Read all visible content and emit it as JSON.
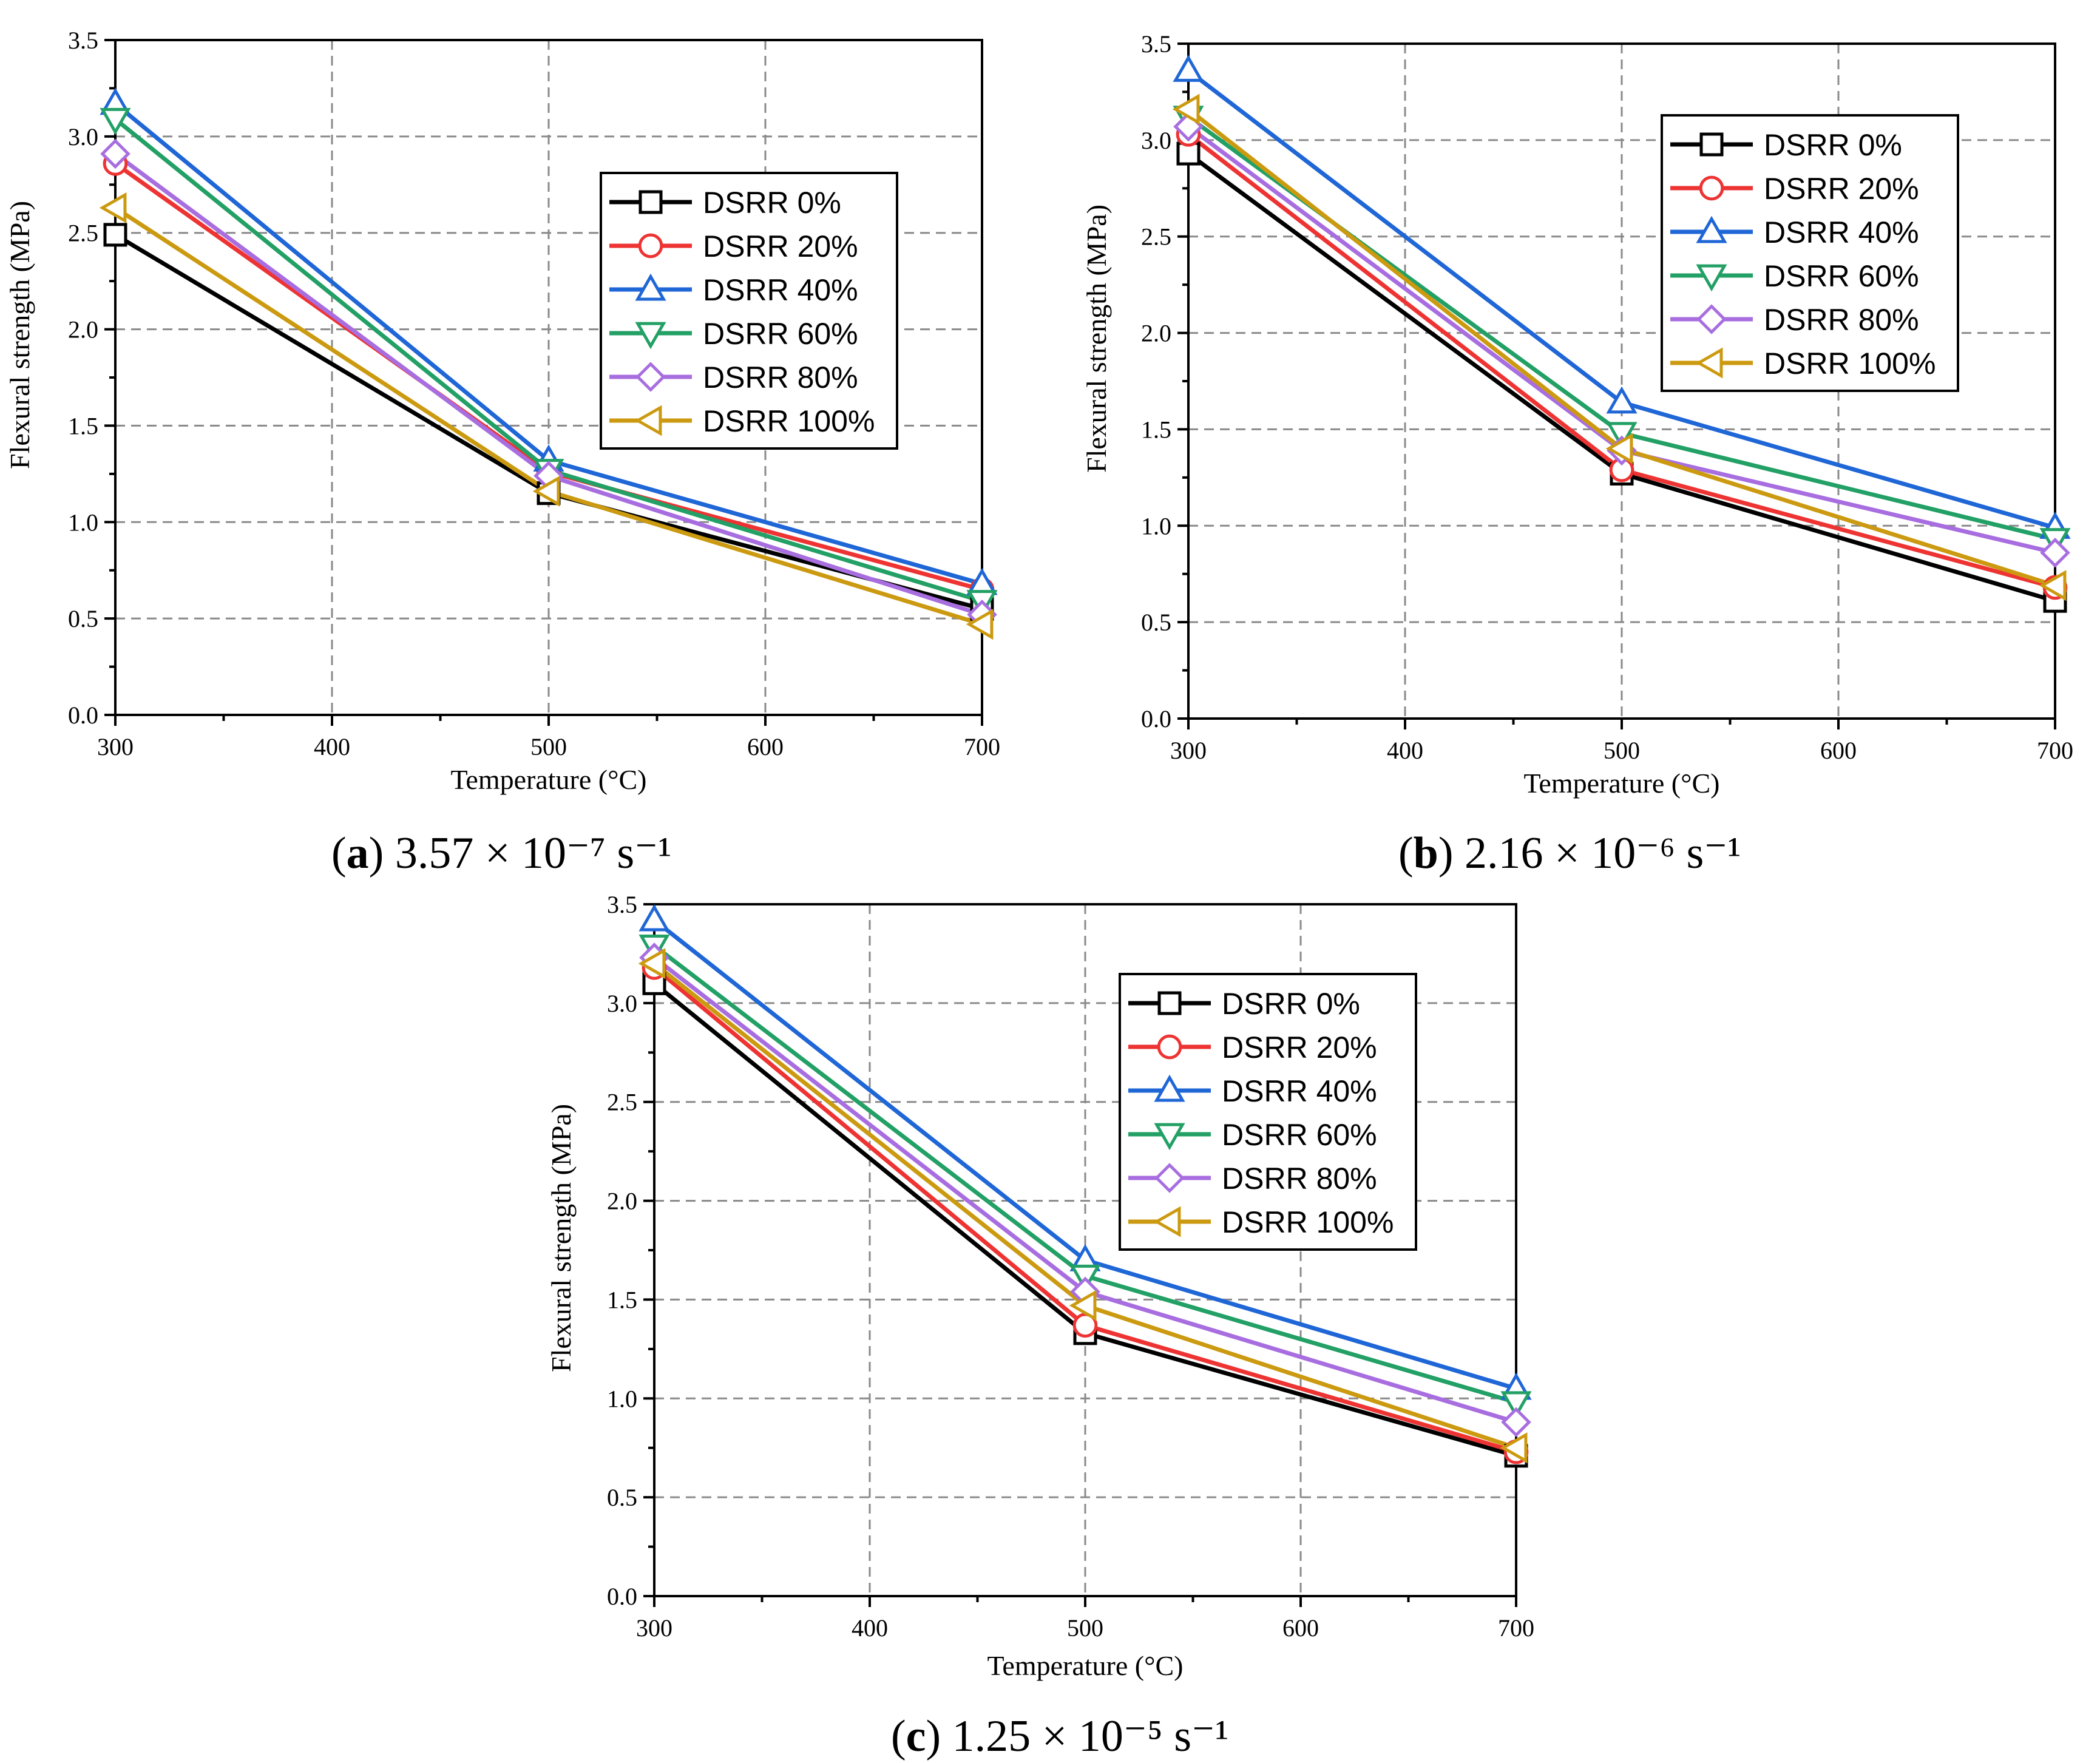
{
  "figure": {
    "captions": [
      {
        "label": "a",
        "text": "3.57 × 10⁻⁷ s⁻¹"
      },
      {
        "label": "b",
        "text": "2.16 × 10⁻⁶ s⁻¹"
      },
      {
        "label": "c",
        "text": "1.25 × 10⁻⁵ s⁻¹"
      }
    ]
  },
  "chart_data": [
    {
      "type": "line",
      "title": "",
      "xlabel": "Temperature (°C)",
      "ylabel": "Flexural strength (MPa)",
      "xlim": [
        300,
        700
      ],
      "ylim": [
        0.0,
        3.5
      ],
      "x_ticks": [
        300,
        400,
        500,
        600,
        700
      ],
      "y_ticks": [
        "0.0",
        "0.5",
        "1.0",
        "1.5",
        "2.0",
        "2.5",
        "3.0",
        "3.5"
      ],
      "grid": true,
      "legend_position": "center-right",
      "x": [
        300,
        500,
        700
      ],
      "series": [
        {
          "name": "DSRR 0%",
          "values": [
            2.49,
            1.15,
            0.55
          ],
          "color": "#000000",
          "marker": "square"
        },
        {
          "name": "DSRR 20%",
          "values": [
            2.86,
            1.26,
            0.65
          ],
          "color": "#ee3333",
          "marker": "circle"
        },
        {
          "name": "DSRR 40%",
          "values": [
            3.17,
            1.32,
            0.68
          ],
          "color": "#1f66d6",
          "marker": "triangle-up"
        },
        {
          "name": "DSRR 60%",
          "values": [
            3.09,
            1.27,
            0.59
          ],
          "color": "#22a065",
          "marker": "triangle-down"
        },
        {
          "name": "DSRR 80%",
          "values": [
            2.91,
            1.24,
            0.52
          ],
          "color": "#a86ee0",
          "marker": "diamond"
        },
        {
          "name": "DSRR 100%",
          "values": [
            2.63,
            1.16,
            0.47
          ],
          "color": "#cc9a10",
          "marker": "triangle-left"
        }
      ]
    },
    {
      "type": "line",
      "title": "",
      "xlabel": "Temperature (°C)",
      "ylabel": "Flexural strength (MPa)",
      "xlim": [
        300,
        700
      ],
      "ylim": [
        0.0,
        3.5
      ],
      "x_ticks": [
        300,
        400,
        500,
        600,
        700
      ],
      "y_ticks": [
        "0.0",
        "0.5",
        "1.0",
        "1.5",
        "2.0",
        "2.5",
        "3.0",
        "3.5"
      ],
      "grid": true,
      "legend_position": "top-right",
      "x": [
        300,
        500,
        700
      ],
      "series": [
        {
          "name": "DSRR 0%",
          "values": [
            2.93,
            1.27,
            0.61
          ],
          "color": "#000000",
          "marker": "square"
        },
        {
          "name": "DSRR 20%",
          "values": [
            3.03,
            1.29,
            0.68
          ],
          "color": "#ee3333",
          "marker": "circle"
        },
        {
          "name": "DSRR 40%",
          "values": [
            3.36,
            1.64,
            0.99
          ],
          "color": "#1f66d6",
          "marker": "triangle-up"
        },
        {
          "name": "DSRR 60%",
          "values": [
            3.12,
            1.48,
            0.93
          ],
          "color": "#22a065",
          "marker": "triangle-down"
        },
        {
          "name": "DSRR 80%",
          "values": [
            3.07,
            1.39,
            0.86
          ],
          "color": "#a86ee0",
          "marker": "diamond"
        },
        {
          "name": "DSRR 100%",
          "values": [
            3.16,
            1.4,
            0.69
          ],
          "color": "#cc9a10",
          "marker": "triangle-left"
        }
      ]
    },
    {
      "type": "line",
      "title": "",
      "xlabel": "Temperature (°C)",
      "ylabel": "Flexural strength (MPa)",
      "xlim": [
        300,
        700
      ],
      "ylim": [
        0.0,
        3.5
      ],
      "x_ticks": [
        300,
        400,
        500,
        600,
        700
      ],
      "y_ticks": [
        "0.0",
        "0.5",
        "1.0",
        "1.5",
        "2.0",
        "2.5",
        "3.0",
        "3.5"
      ],
      "grid": true,
      "legend_position": "top-right",
      "x": [
        300,
        500,
        700
      ],
      "series": [
        {
          "name": "DSRR 0%",
          "values": [
            3.1,
            1.33,
            0.71
          ],
          "color": "#000000",
          "marker": "square"
        },
        {
          "name": "DSRR 20%",
          "values": [
            3.18,
            1.37,
            0.73
          ],
          "color": "#ee3333",
          "marker": "circle"
        },
        {
          "name": "DSRR 40%",
          "values": [
            3.42,
            1.7,
            1.05
          ],
          "color": "#1f66d6",
          "marker": "triangle-up"
        },
        {
          "name": "DSRR 60%",
          "values": [
            3.29,
            1.62,
            0.98
          ],
          "color": "#22a065",
          "marker": "triangle-down"
        },
        {
          "name": "DSRR 80%",
          "values": [
            3.23,
            1.54,
            0.88
          ],
          "color": "#a86ee0",
          "marker": "diamond"
        },
        {
          "name": "DSRR 100%",
          "values": [
            3.2,
            1.47,
            0.75
          ],
          "color": "#cc9a10",
          "marker": "triangle-left"
        }
      ]
    }
  ]
}
